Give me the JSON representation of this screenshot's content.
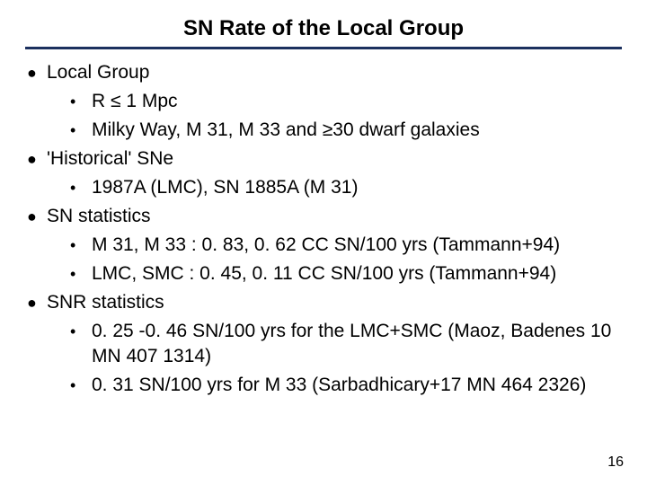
{
  "title": "SN Rate of the Local Group",
  "sections": [
    {
      "heading": "Local Group",
      "items": [
        "R ≤ 1 Mpc",
        "Milky Way, M 31, M 33 and ≥30 dwarf galaxies"
      ]
    },
    {
      "heading": "'Historical' SNe",
      "items": [
        "1987A (LMC), SN 1885A (M 31)"
      ]
    },
    {
      "heading": "SN statistics",
      "items": [
        "M 31, M 33 : 0. 83, 0. 62 CC SN/100 yrs (Tammann+94)",
        "LMC, SMC : 0. 45, 0. 11 CC SN/100 yrs (Tammann+94)"
      ]
    },
    {
      "heading": "SNR statistics",
      "items": [
        "0. 25 -0. 46 SN/100 yrs for the LMC+SMC (Maoz, Badenes 10 MN 407 1314)",
        "0. 31 SN/100 yrs for M 33 (Sarbadhicary+17 MN 464 2326)"
      ]
    }
  ],
  "page_number": "16",
  "colors": {
    "rule": "#1b305e",
    "text": "#000000",
    "background": "#ffffff"
  },
  "bullets": {
    "outer": "●",
    "inner": "•"
  }
}
